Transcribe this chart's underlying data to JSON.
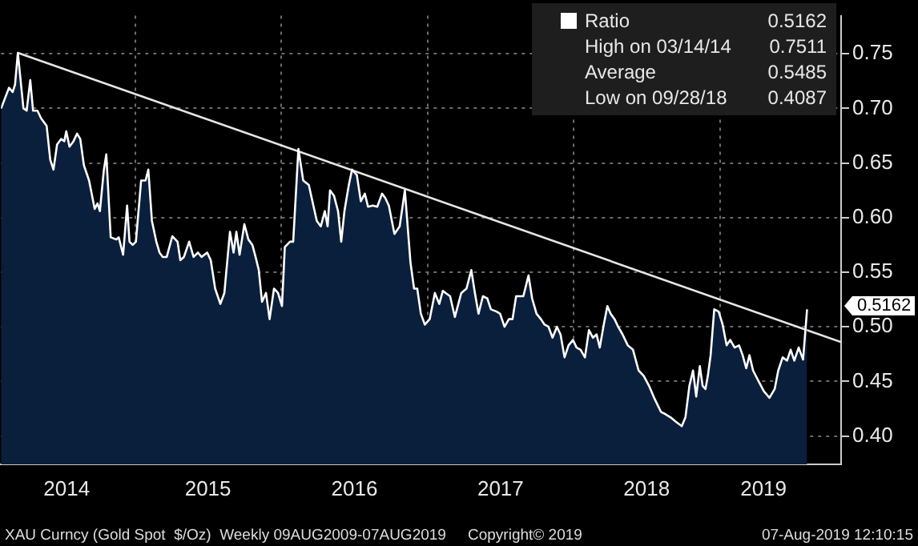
{
  "chart_data": {
    "type": "area",
    "xlim": [
      "2014-01-31",
      "2019-10-31"
    ],
    "ylim": [
      0.374,
      0.785
    ],
    "xticks": [
      {
        "value": "2014-07-14",
        "label": "2014"
      },
      {
        "value": "2015-01-01",
        "label": null
      },
      {
        "value": "2015-07-02",
        "label": "2015"
      },
      {
        "value": "2016-01-01",
        "label": null
      },
      {
        "value": "2016-07-02",
        "label": "2016"
      },
      {
        "value": "2017-01-01",
        "label": null
      },
      {
        "value": "2017-07-02",
        "label": "2017"
      },
      {
        "value": "2018-01-01",
        "label": null
      },
      {
        "value": "2018-07-02",
        "label": "2018"
      },
      {
        "value": "2019-01-01",
        "label": null
      },
      {
        "value": "2019-04-20",
        "label": "2019"
      }
    ],
    "yticks": [
      {
        "value": 0.4,
        "label": "0.40"
      },
      {
        "value": 0.45,
        "label": "0.45"
      },
      {
        "value": 0.5,
        "label": "0.50"
      },
      {
        "value": 0.55,
        "label": "0.55"
      },
      {
        "value": 0.6,
        "label": "0.60"
      },
      {
        "value": 0.65,
        "label": "0.65"
      },
      {
        "value": 0.7,
        "label": "0.70"
      },
      {
        "value": 0.75,
        "label": "0.75"
      }
    ],
    "grid": true,
    "legend": "top right",
    "series": [
      {
        "name": "Ratio",
        "color": "#ffffff",
        "x": [
          "2014-01-31",
          "2014-02-20",
          "2014-03-01",
          "2014-03-07",
          "2014-03-14",
          "2014-03-28",
          "2014-04-05",
          "2014-04-14",
          "2014-04-21",
          "2014-05-02",
          "2014-05-11",
          "2014-05-25",
          "2014-06-03",
          "2014-06-11",
          "2014-06-20",
          "2014-06-30",
          "2014-07-08",
          "2014-07-13",
          "2014-07-21",
          "2014-07-31",
          "2014-08-09",
          "2014-08-17",
          "2014-08-26",
          "2014-09-08",
          "2014-09-22",
          "2014-09-29",
          "2014-10-05",
          "2014-10-15",
          "2014-10-21",
          "2014-11-01",
          "2014-11-15",
          "2014-11-21",
          "2014-12-02",
          "2014-12-12",
          "2014-12-18",
          "2014-12-26",
          "2015-01-03",
          "2015-01-16",
          "2015-01-27",
          "2015-02-03",
          "2015-02-12",
          "2015-02-23",
          "2015-03-03",
          "2015-03-11",
          "2015-03-21",
          "2015-04-04",
          "2015-04-17",
          "2015-04-24",
          "2015-05-03",
          "2015-05-16",
          "2015-05-27",
          "2015-06-07",
          "2015-06-16",
          "2015-06-30",
          "2015-07-09",
          "2015-07-20",
          "2015-08-02",
          "2015-08-12",
          "2015-08-26",
          "2015-09-04",
          "2015-09-11",
          "2015-09-19",
          "2015-10-01",
          "2015-10-11",
          "2015-10-21",
          "2015-10-29",
          "2015-11-06",
          "2015-11-14",
          "2015-11-24",
          "2015-12-03",
          "2015-12-14",
          "2015-12-24",
          "2016-01-03",
          "2016-01-10",
          "2016-01-23",
          "2016-01-31",
          "2016-02-13",
          "2016-02-25",
          "2016-03-10",
          "2016-03-19",
          "2016-03-30",
          "2016-04-09",
          "2016-04-19",
          "2016-04-26",
          "2016-05-02",
          "2016-05-12",
          "2016-05-22",
          "2016-05-30",
          "2016-06-07",
          "2016-06-18",
          "2016-06-26",
          "2016-07-08",
          "2016-07-18",
          "2016-07-28",
          "2016-08-05",
          "2016-08-17",
          "2016-08-28",
          "2016-09-09",
          "2016-09-17",
          "2016-09-26",
          "2016-10-10",
          "2016-10-23",
          "2016-11-05",
          "2016-11-19",
          "2016-11-28",
          "2016-12-06",
          "2016-12-15",
          "2016-12-25",
          "2017-01-06",
          "2017-01-19",
          "2017-01-30",
          "2017-02-08",
          "2017-02-15",
          "2017-02-26",
          "2017-03-10",
          "2017-03-26",
          "2017-04-08",
          "2017-04-20",
          "2017-04-29",
          "2017-05-08",
          "2017-05-19",
          "2017-05-30",
          "2017-06-08",
          "2017-06-22",
          "2017-07-01",
          "2017-07-12",
          "2017-07-23",
          "2017-08-01",
          "2017-08-10",
          "2017-08-28",
          "2017-09-10",
          "2017-09-19",
          "2017-09-30",
          "2017-10-11",
          "2017-10-20",
          "2017-10-30",
          "2017-11-09",
          "2017-11-20",
          "2017-11-29",
          "2017-12-09",
          "2017-12-19",
          "2017-12-30",
          "2018-01-08",
          "2018-01-18",
          "2018-01-29",
          "2018-02-08",
          "2018-02-18",
          "2018-02-27",
          "2018-03-07",
          "2018-03-17",
          "2018-03-26",
          "2018-04-03",
          "2018-04-13",
          "2018-04-22",
          "2018-05-03",
          "2018-05-16",
          "2018-05-29",
          "2018-06-12",
          "2018-06-25",
          "2018-07-08",
          "2018-07-22",
          "2018-08-07",
          "2018-08-18",
          "2018-08-31",
          "2018-09-13",
          "2018-09-28",
          "2018-10-07",
          "2018-10-17",
          "2018-10-26",
          "2018-11-03",
          "2018-11-12",
          "2018-11-19",
          "2018-11-26",
          "2018-12-02",
          "2018-12-09",
          "2018-12-18",
          "2018-12-29",
          "2019-01-08",
          "2019-01-18",
          "2019-01-27",
          "2019-02-07",
          "2019-02-18",
          "2019-02-27",
          "2019-03-08",
          "2019-03-16",
          "2019-03-25",
          "2019-04-08",
          "2019-04-21",
          "2019-05-05",
          "2019-05-18",
          "2019-05-27",
          "2019-06-07",
          "2019-06-18",
          "2019-06-27",
          "2019-07-06",
          "2019-07-17",
          "2019-07-28",
          "2019-08-07"
        ],
        "values": [
          0.7,
          0.719,
          0.715,
          0.722,
          0.751,
          0.7,
          0.698,
          0.726,
          0.698,
          0.698,
          0.691,
          0.684,
          0.653,
          0.644,
          0.667,
          0.672,
          0.67,
          0.679,
          0.665,
          0.67,
          0.677,
          0.672,
          0.648,
          0.634,
          0.608,
          0.613,
          0.606,
          0.644,
          0.658,
          0.582,
          0.58,
          0.582,
          0.566,
          0.611,
          0.578,
          0.575,
          0.578,
          0.634,
          0.634,
          0.644,
          0.597,
          0.578,
          0.568,
          0.564,
          0.564,
          0.583,
          0.578,
          0.561,
          0.564,
          0.578,
          0.564,
          0.568,
          0.564,
          0.568,
          0.561,
          0.535,
          0.521,
          0.531,
          0.587,
          0.568,
          0.587,
          0.566,
          0.594,
          0.58,
          0.575,
          0.564,
          0.552,
          0.523,
          0.531,
          0.507,
          0.535,
          0.531,
          0.519,
          0.573,
          0.578,
          0.578,
          0.663,
          0.634,
          0.63,
          0.615,
          0.597,
          0.592,
          0.606,
          0.592,
          0.625,
          0.62,
          0.606,
          0.578,
          0.606,
          0.63,
          0.644,
          0.639,
          0.615,
          0.622,
          0.61,
          0.611,
          0.61,
          0.622,
          0.618,
          0.611,
          0.585,
          0.592,
          0.625,
          0.559,
          0.535,
          0.535,
          0.512,
          0.502,
          0.507,
          0.531,
          0.521,
          0.533,
          0.531,
          0.528,
          0.509,
          0.531,
          0.535,
          0.552,
          0.531,
          0.512,
          0.528,
          0.526,
          0.516,
          0.514,
          0.512,
          0.5,
          0.507,
          0.507,
          0.528,
          0.528,
          0.547,
          0.526,
          0.512,
          0.507,
          0.502,
          0.5,
          0.49,
          0.5,
          0.493,
          0.472,
          0.483,
          0.488,
          0.481,
          0.479,
          0.472,
          0.497,
          0.49,
          0.493,
          0.481,
          0.502,
          0.519,
          0.512,
          0.507,
          0.5,
          0.493,
          0.483,
          0.479,
          0.46,
          0.455,
          0.446,
          0.434,
          0.422,
          0.42,
          0.417,
          0.413,
          0.409,
          0.417,
          0.446,
          0.46,
          0.436,
          0.464,
          0.446,
          0.443,
          0.455,
          0.474,
          0.516,
          0.514,
          0.502,
          0.483,
          0.488,
          0.481,
          0.483,
          0.474,
          0.462,
          0.474,
          0.46,
          0.45,
          0.441,
          0.435,
          0.443,
          0.46,
          0.472,
          0.469,
          0.479,
          0.469,
          0.481,
          0.47,
          0.516
        ]
      },
      {
        "type": "line",
        "color": "#e6e6e6",
        "x": [
          "2014-03-14",
          "2019-10-31"
        ],
        "values": [
          0.751,
          0.486
        ]
      }
    ],
    "annotations": [
      "0.5162",
      "High on 03/14/14",
      "0.7511",
      "Average",
      "0.5485",
      "Low on 09/28/18",
      "0.4087",
      "XAU Curncy (Gold Spot  $/Oz)  Weekly 09AUG2009-07AUG2019",
      "Copyright© 2019",
      "07-Aug-2019 12:10:15",
      {
        "text": "0.5162",
        "x": "2019-08-07",
        "y": 0.5162
      }
    ]
  }
}
